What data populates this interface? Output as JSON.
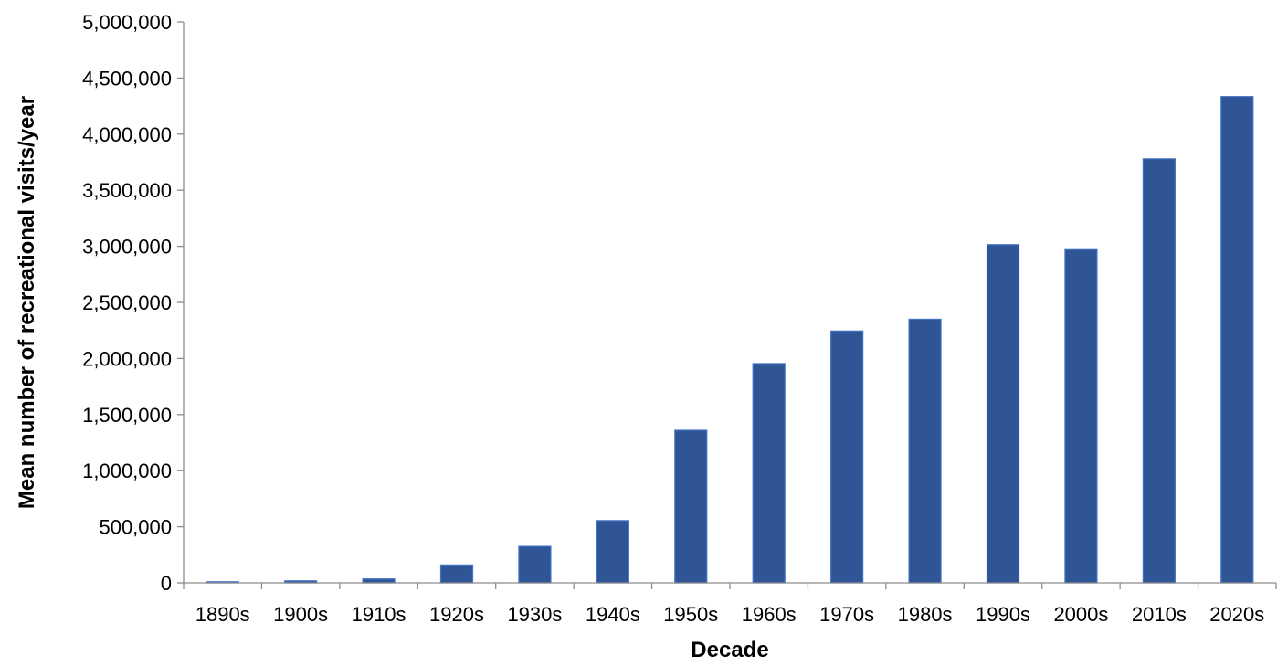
{
  "chart_data": {
    "type": "bar",
    "title": "",
    "xlabel": "Decade",
    "ylabel": "Mean number of recreational visits/year",
    "categories": [
      "1890s",
      "1900s",
      "1910s",
      "1920s",
      "1930s",
      "1940s",
      "1950s",
      "1960s",
      "1970s",
      "1980s",
      "1990s",
      "2000s",
      "2010s",
      "2020s"
    ],
    "values": [
      10000,
      18000,
      35000,
      160000,
      325000,
      555000,
      1360000,
      1955000,
      2245000,
      2350000,
      3015000,
      2970000,
      3780000,
      4335000
    ],
    "ylim": [
      0,
      5000000
    ],
    "yticks": [
      0,
      500000,
      1000000,
      1500000,
      2000000,
      2500000,
      3000000,
      3500000,
      4000000,
      4500000,
      5000000
    ],
    "ytick_labels": [
      "0",
      "500,000",
      "1,000,000",
      "1,500,000",
      "2,000,000",
      "2,500,000",
      "3,000,000",
      "3,500,000",
      "4,000,000",
      "4,500,000",
      "5,000,000"
    ],
    "grid": false,
    "legend": "none",
    "bar_color": "#2f5597"
  }
}
